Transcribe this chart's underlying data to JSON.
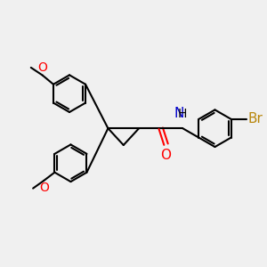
{
  "bg_color": "#f0f0f0",
  "bond_color": "#000000",
  "oxygen_color": "#ff0000",
  "nitrogen_color": "#0000cc",
  "bromine_color": "#b8860b",
  "line_width": 1.5,
  "font_size": 10,
  "fig_size": [
    3.0,
    3.0
  ],
  "dpi": 100,
  "xlim": [
    0,
    10
  ],
  "ylim": [
    0,
    10
  ]
}
